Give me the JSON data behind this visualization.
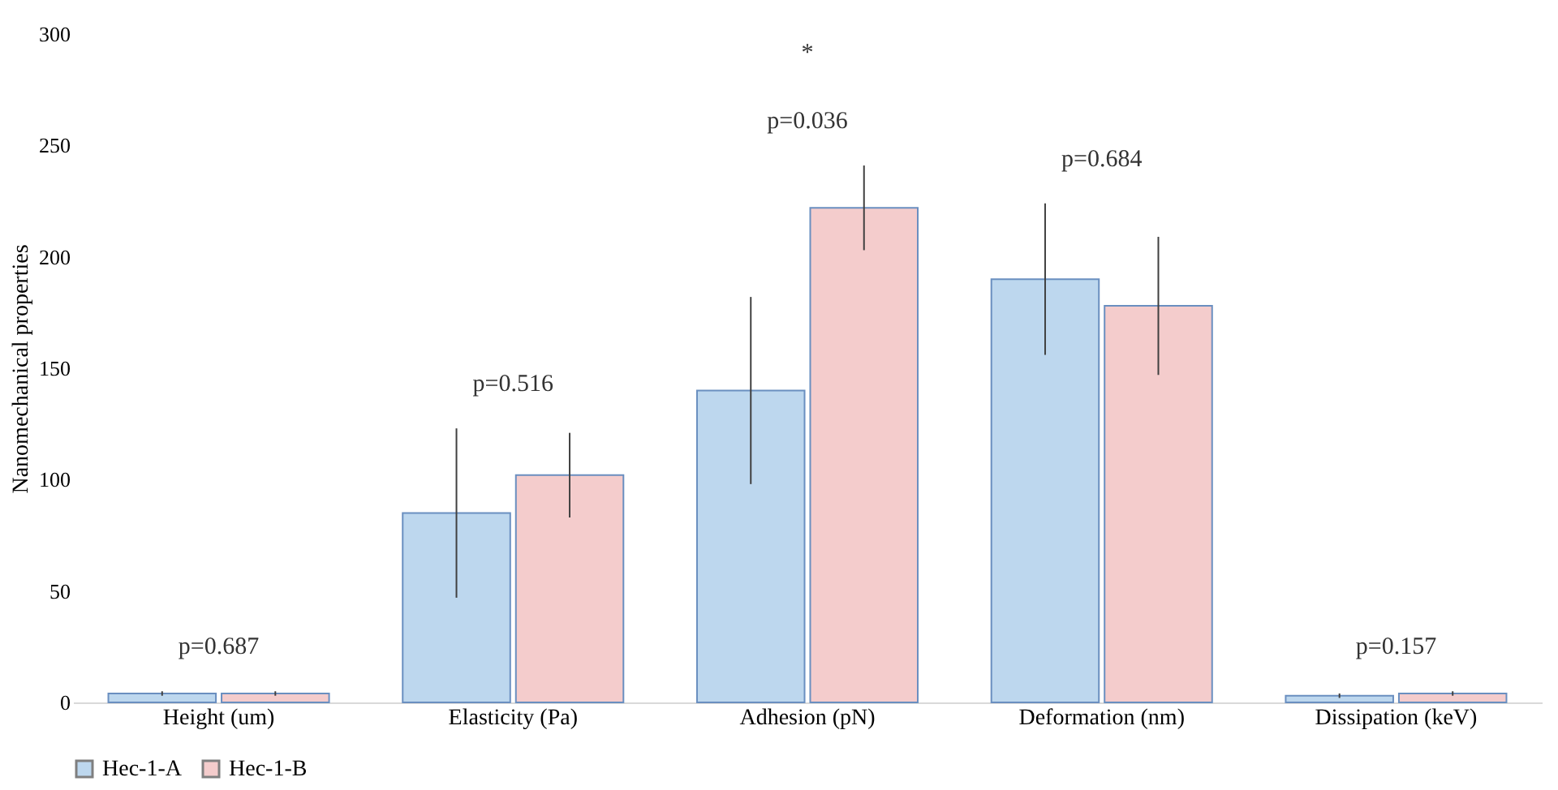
{
  "chart_data": {
    "type": "bar",
    "ylabel": "Nanomechanical properties",
    "categories": [
      "Height (um)",
      "Elasticity (Pa)",
      "Adhesion (pN)",
      "Deformation (nm)",
      "Dissipation (keV)"
    ],
    "series": [
      {
        "name": "Hec-1-A",
        "color": "#bdd7ee",
        "values": [
          4,
          85,
          140,
          190,
          3
        ],
        "errors": [
          1,
          38,
          42,
          34,
          1
        ]
      },
      {
        "name": "Hec-1-B",
        "color": "#f4cccc",
        "values": [
          4,
          102,
          222,
          178,
          4
        ],
        "errors": [
          1,
          19,
          19,
          31,
          1
        ]
      }
    ],
    "ylim": [
      0,
      300
    ],
    "yticks": [
      0,
      50,
      100,
      150,
      200,
      250,
      300
    ],
    "grid": false,
    "legend": "bottom",
    "annotations": [
      "p=0.687",
      "p=0.516",
      "p=0.036",
      "p=0.684",
      "p=0.157",
      "*"
    ]
  }
}
